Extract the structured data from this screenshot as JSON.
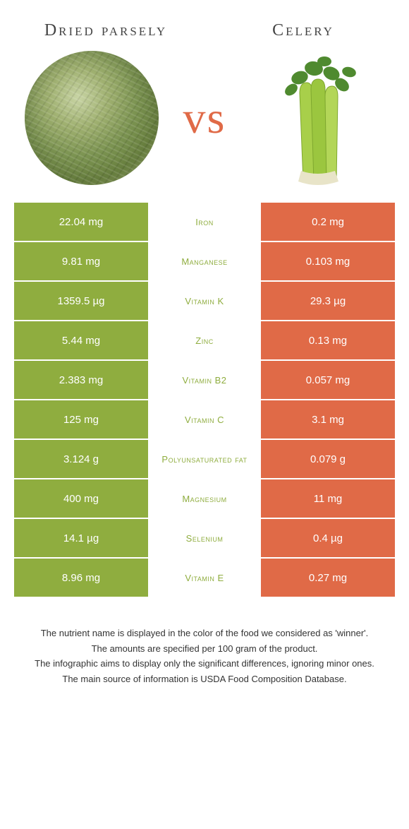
{
  "food_left": {
    "title": "Dried parsely"
  },
  "food_right": {
    "title": "Celery"
  },
  "vs_label": "vs",
  "colors": {
    "left_cell": "#8fad3f",
    "right_cell": "#e06a47",
    "nutrient_left_win": "#8fad3f",
    "nutrient_right_win": "#e06a47"
  },
  "rows": [
    {
      "nutrient": "Iron",
      "left": "22.04 mg",
      "right": "0.2 mg",
      "winner": "left"
    },
    {
      "nutrient": "Manganese",
      "left": "9.81 mg",
      "right": "0.103 mg",
      "winner": "left"
    },
    {
      "nutrient": "Vitamin K",
      "left": "1359.5 µg",
      "right": "29.3 µg",
      "winner": "left"
    },
    {
      "nutrient": "Zinc",
      "left": "5.44 mg",
      "right": "0.13 mg",
      "winner": "left"
    },
    {
      "nutrient": "Vitamin B2",
      "left": "2.383 mg",
      "right": "0.057 mg",
      "winner": "left"
    },
    {
      "nutrient": "Vitamin C",
      "left": "125 mg",
      "right": "3.1 mg",
      "winner": "left"
    },
    {
      "nutrient": "Polyunsaturated fat",
      "left": "3.124 g",
      "right": "0.079 g",
      "winner": "left"
    },
    {
      "nutrient": "Magnesium",
      "left": "400 mg",
      "right": "11 mg",
      "winner": "left"
    },
    {
      "nutrient": "Selenium",
      "left": "14.1 µg",
      "right": "0.4 µg",
      "winner": "left"
    },
    {
      "nutrient": "Vitamin E",
      "left": "8.96 mg",
      "right": "0.27 mg",
      "winner": "left"
    }
  ],
  "footer": {
    "line1": "The nutrient name is displayed in the color of the food we considered as 'winner'.",
    "line2": "The amounts are specified per 100 gram of the product.",
    "line3": "The infographic aims to display only the significant differences, ignoring minor ones.",
    "line4": "The main source of information is USDA Food Composition Database."
  }
}
